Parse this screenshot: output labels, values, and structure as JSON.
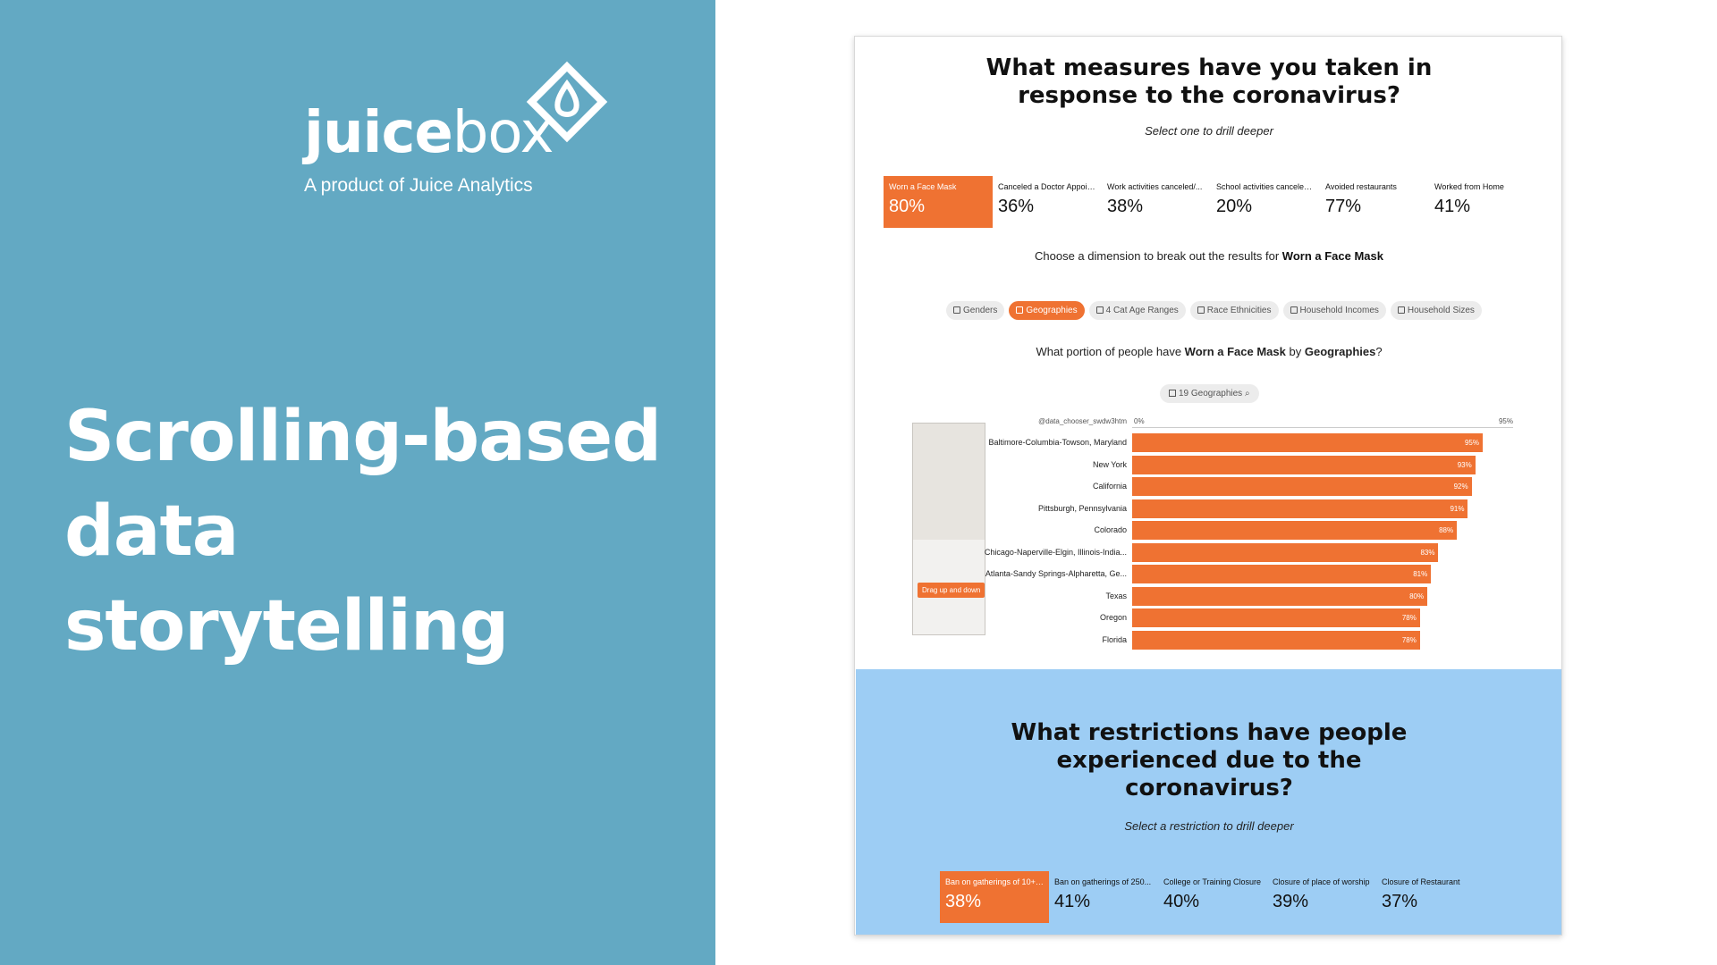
{
  "left": {
    "logo_bold": "juice",
    "logo_light": "box",
    "tagline": "A product of Juice Analytics",
    "headline_line1": "Scrolling-based",
    "headline_line2": "data storytelling",
    "bg_color": "#63a9c3"
  },
  "section1": {
    "title_line1": "What measures have you taken in",
    "title_line2": "response to the coronavirus?",
    "subtitle": "Select one to drill deeper",
    "metrics": [
      {
        "label": "Worn a Face Mask",
        "value": "80%"
      },
      {
        "label": "Canceled a Doctor Appoin...",
        "value": "36%"
      },
      {
        "label": "Work activities canceled/...",
        "value": "38%"
      },
      {
        "label": "School activities canceled...",
        "value": "20%"
      },
      {
        "label": "Avoided restaurants",
        "value": "77%"
      },
      {
        "label": "Worked from Home",
        "value": "41%"
      }
    ],
    "choose_prefix": "Choose a dimension to break out the results for",
    "choose_bold": "Worn a Face Mask",
    "dimensions": [
      "Genders",
      "Geographies",
      "4 Cat Age Ranges",
      "Race Ethnicities",
      "Household Incomes",
      "Household Sizes"
    ],
    "portion_prefix": "What portion of people have",
    "portion_measure": "Worn a Face Mask",
    "portion_mid": "by",
    "portion_dim": "Geographies",
    "portion_suffix": "?",
    "geo_chip": "19 Geographies",
    "chooser_label": "@data_chooser_swdw3htm",
    "drag_hint": "Drag up and down"
  },
  "chart_data": {
    "type": "bar",
    "orientation": "horizontal",
    "axis_min_label": "0%",
    "axis_max_label": "95%",
    "xlim": [
      0,
      95
    ],
    "categories": [
      "Baltimore-Columbia-Towson, Maryland",
      "New York",
      "California",
      "Pittsburgh, Pennsylvania",
      "Colorado",
      "Chicago-Naperville-Elgin, Illinois-India...",
      "Atlanta-Sandy Springs-Alpharetta, Ge...",
      "Texas",
      "Oregon",
      "Florida"
    ],
    "values": [
      95,
      93,
      92,
      91,
      88,
      83,
      81,
      80,
      78,
      78
    ],
    "value_labels": [
      "95%",
      "93%",
      "92%",
      "91%",
      "88%",
      "83%",
      "81%",
      "80%",
      "78%",
      "78%"
    ],
    "bar_color": "#ef7232"
  },
  "section2": {
    "title_line1": "What restrictions have people",
    "title_line2": "experienced due to the",
    "title_line3": "coronavirus?",
    "subtitle": "Select a restriction to drill deeper",
    "metrics": [
      {
        "label": "Ban on gatherings of 10+ ...",
        "value": "38%"
      },
      {
        "label": "Ban on gatherings of 250...",
        "value": "41%"
      },
      {
        "label": "College or Training Closure",
        "value": "40%"
      },
      {
        "label": "Closure of place of worship",
        "value": "39%"
      },
      {
        "label": "Closure of Restaurant",
        "value": "37%"
      }
    ],
    "bg_color": "#9dcdf4"
  }
}
